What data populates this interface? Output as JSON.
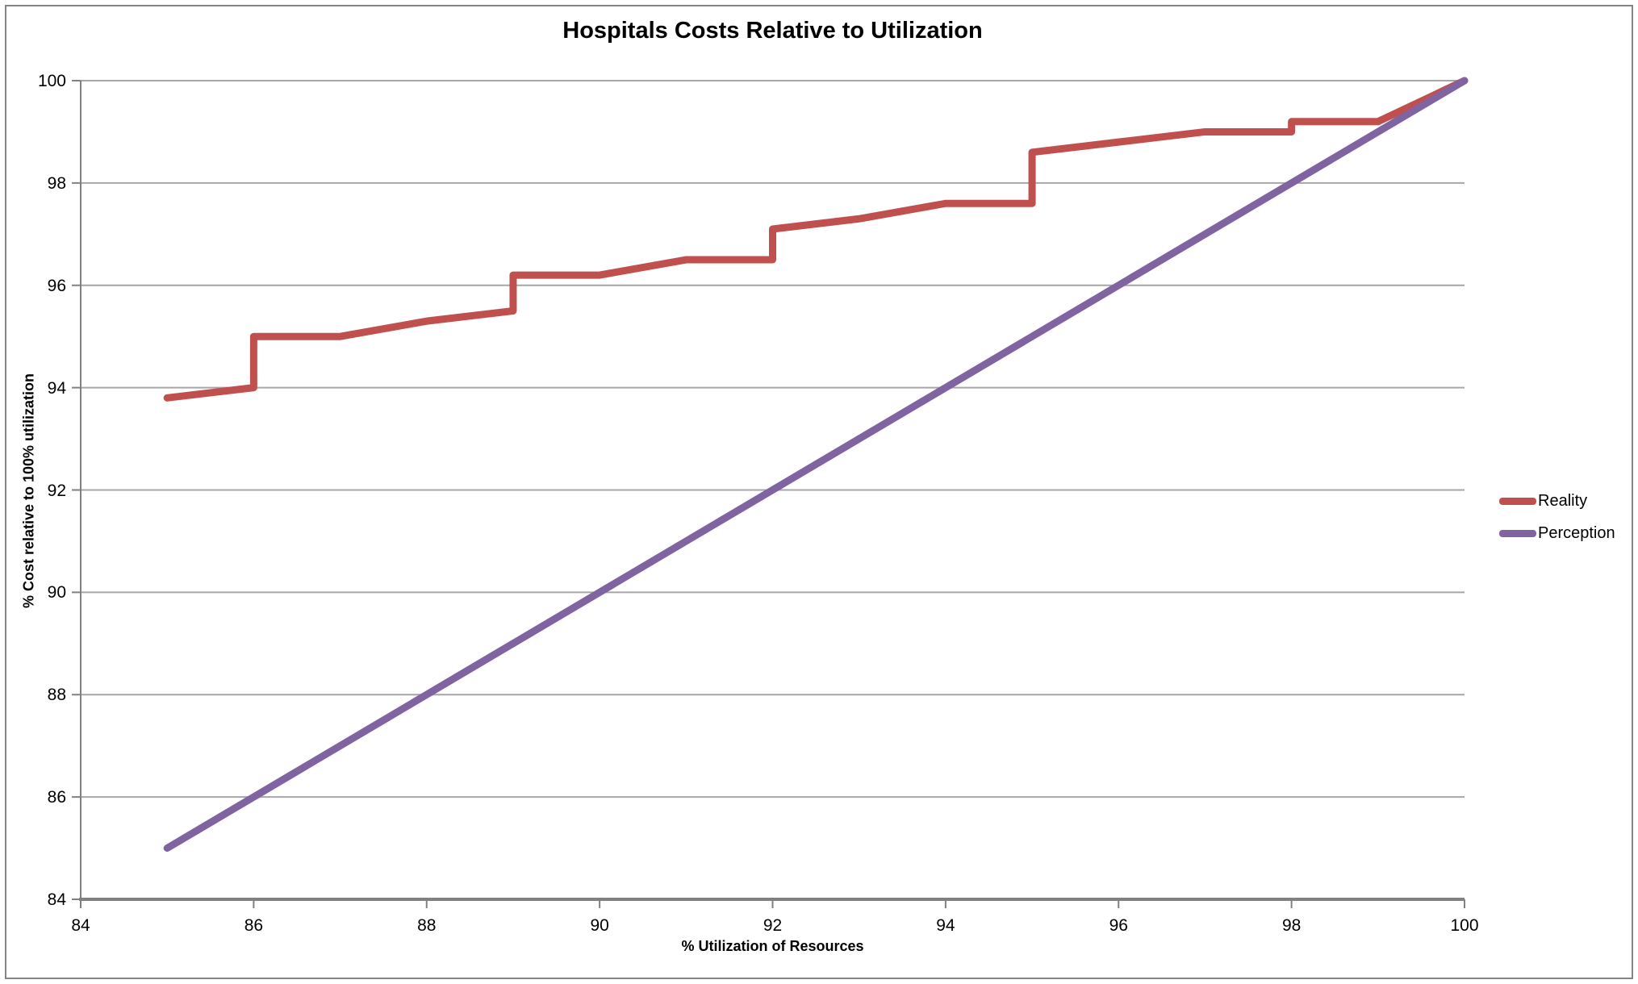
{
  "window": {
    "background": "#ffffff",
    "border_color": "#848484"
  },
  "chart_data": {
    "type": "line",
    "title": "Hospitals Costs Relative to Utilization",
    "xlabel": "% Utilization of Resources",
    "ylabel": "% Cost relative to 100% utilization",
    "xlim": [
      84,
      100
    ],
    "ylim": [
      84,
      100
    ],
    "x_ticks": [
      84,
      86,
      88,
      90,
      92,
      94,
      96,
      98,
      100
    ],
    "y_ticks": [
      84,
      86,
      88,
      90,
      92,
      94,
      96,
      98,
      100
    ],
    "grid": "horizontal-only",
    "gridline_color": "#a6a6a6",
    "axis_color": "#808080",
    "legend_position": "right-middle",
    "series": [
      {
        "name": "Reality",
        "color": "#C0504D",
        "points": [
          [
            85,
            93.8
          ],
          [
            86,
            94
          ],
          [
            86,
            95
          ],
          [
            87,
            95
          ],
          [
            88,
            95.3
          ],
          [
            89,
            95.5
          ],
          [
            89,
            96.2
          ],
          [
            90,
            96.2
          ],
          [
            91,
            96.5
          ],
          [
            92,
            96.5
          ],
          [
            92,
            97.1
          ],
          [
            93,
            97.3
          ],
          [
            94,
            97.6
          ],
          [
            95,
            97.6
          ],
          [
            95,
            98.6
          ],
          [
            96,
            98.8
          ],
          [
            97,
            99
          ],
          [
            98,
            99
          ],
          [
            98,
            99.2
          ],
          [
            99,
            99.2
          ],
          [
            100,
            100
          ]
        ]
      },
      {
        "name": "Perception",
        "color": "#8064A2",
        "points": [
          [
            85,
            85
          ],
          [
            100,
            100
          ]
        ]
      }
    ]
  }
}
